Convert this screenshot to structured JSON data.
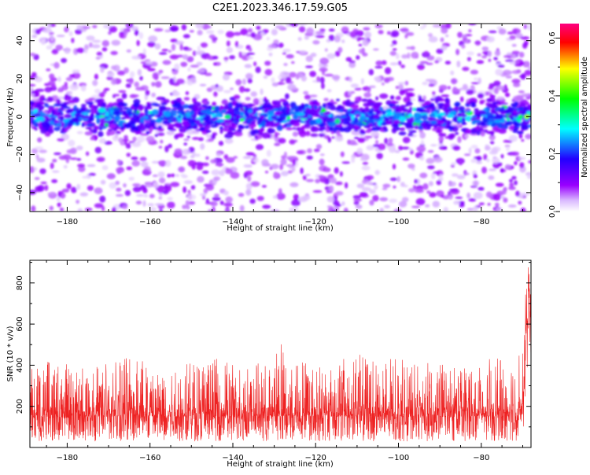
{
  "figure": {
    "title": "C2E1.2023.346.17.59.G05"
  },
  "chart_data": [
    {
      "type": "heatmap",
      "title": "C2E1.2023.346.17.59.G05",
      "xlabel": "Height of straight line (km)",
      "ylabel": "Frequency (Hz)",
      "xlim": [
        -189,
        -68
      ],
      "ylim": [
        -50,
        49
      ],
      "xticks": [
        -180,
        -160,
        -140,
        -120,
        -100,
        -80
      ],
      "yticks": [
        -40,
        -20,
        0,
        20,
        40
      ],
      "colorbar": {
        "label": "Normalized spectral amplitude",
        "range": [
          0,
          0.65
        ],
        "ticks": [
          0.0,
          0.2,
          0.4,
          0.6
        ],
        "colormap": [
          "#ffffff",
          "#d9b8ff",
          "#9900ff",
          "#2200ff",
          "#00ffff",
          "#00ff00",
          "#ffff00",
          "#ff0000",
          "#ff0080"
        ]
      },
      "description_band": {
        "center_hz": 0,
        "half_width_hz": 9,
        "typical_amplitude": 0.25,
        "peak_amplitude": 0.45,
        "peak_x_km": -69
      }
    },
    {
      "type": "line",
      "xlabel": "Height of straight line (km)",
      "ylabel": "SNR (10 * v/v)",
      "xlim": [
        -189,
        -68
      ],
      "ylim": [
        0,
        910
      ],
      "xticks": [
        -180,
        -160,
        -140,
        -120,
        -100,
        -80
      ],
      "yticks": [
        200,
        400,
        600,
        800
      ],
      "series": [
        {
          "color": "#ee2222",
          "x": [
            -189,
            -185,
            -180,
            -175,
            -170,
            -166,
            -165,
            -160,
            -155,
            -150,
            -145,
            -140,
            -135,
            -130,
            -129,
            -125,
            -120,
            -115,
            -110,
            -105,
            -100,
            -95,
            -90,
            -85,
            -80,
            -75,
            -72,
            -70,
            -69,
            -68.5,
            -68
          ],
          "y": [
            140,
            150,
            145,
            150,
            148,
            155,
            160,
            150,
            152,
            150,
            150,
            148,
            150,
            152,
            155,
            150,
            152,
            150,
            155,
            150,
            152,
            150,
            148,
            150,
            152,
            150,
            150,
            160,
            600,
            800,
            520
          ],
          "y_low": [
            30,
            30,
            30,
            30,
            30,
            30,
            30,
            30,
            30,
            30,
            30,
            30,
            30,
            30,
            30,
            30,
            30,
            30,
            30,
            30,
            30,
            30,
            30,
            30,
            30,
            30,
            30,
            40,
            350,
            500,
            300
          ],
          "y_high": [
            410,
            420,
            410,
            400,
            420,
            500,
            540,
            420,
            430,
            430,
            440,
            420,
            410,
            430,
            540,
            440,
            430,
            420,
            460,
            430,
            440,
            420,
            410,
            420,
            440,
            430,
            460,
            480,
            870,
            910,
            700
          ]
        }
      ]
    }
  ]
}
